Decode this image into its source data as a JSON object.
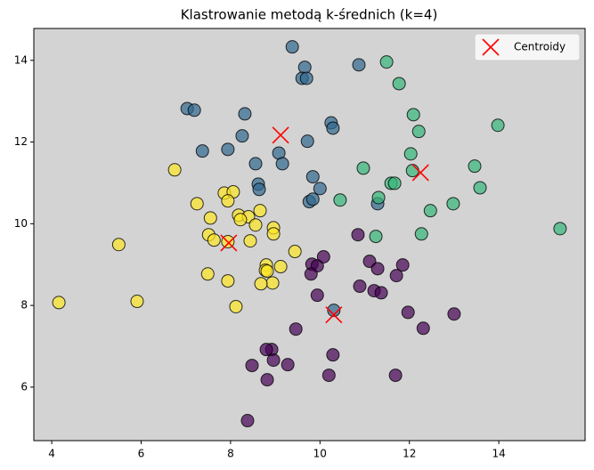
{
  "chart_data": {
    "type": "scatter",
    "title": "Klastrowanie metodą k-średnich (k=4)",
    "xlim": [
      3.6,
      15.93
    ],
    "ylim": [
      4.69,
      14.78
    ],
    "xticks": [
      4,
      6,
      8,
      10,
      12,
      14
    ],
    "yticks": [
      6,
      8,
      10,
      12,
      14
    ],
    "grid": false,
    "background": "#d3d3d3",
    "legend": "upper right",
    "series": [
      {
        "color": "#31688e",
        "marker": "o",
        "x": [
          9.38,
          9.66,
          9.6,
          9.7,
          10.87,
          7.03,
          7.19,
          8.32,
          10.25,
          10.29,
          8.26,
          9.72,
          7.37,
          7.94,
          9.08,
          8.56,
          9.16,
          8.62,
          8.64,
          9.84,
          10.0,
          9.76,
          9.84,
          11.29,
          10.31
        ],
        "y": [
          14.33,
          13.83,
          13.56,
          13.56,
          13.89,
          12.82,
          12.78,
          12.69,
          12.47,
          12.34,
          12.15,
          12.02,
          11.78,
          11.82,
          11.73,
          11.47,
          11.47,
          10.97,
          10.84,
          11.15,
          10.86,
          10.54,
          10.6,
          10.49,
          7.88
        ]
      },
      {
        "color": "#35b779",
        "marker": "o",
        "x": [
          11.49,
          11.77,
          12.09,
          12.21,
          13.98,
          12.03,
          10.97,
          12.07,
          13.46,
          13.58,
          11.59,
          11.67,
          10.45,
          11.31,
          12.47,
          12.98,
          12.27,
          11.25,
          15.37
        ],
        "y": [
          13.96,
          13.43,
          12.67,
          12.26,
          12.41,
          11.71,
          11.36,
          11.3,
          11.41,
          10.88,
          10.99,
          10.99,
          10.58,
          10.64,
          10.32,
          10.49,
          9.75,
          9.69,
          9.88
        ]
      },
      {
        "color": "#fde725",
        "marker": "o",
        "x": [
          6.75,
          7.86,
          8.06,
          7.94,
          7.25,
          8.66,
          7.55,
          8.18,
          8.4,
          8.22,
          8.56,
          7.51,
          5.5,
          7.94,
          7.63,
          8.44,
          8.96,
          8.96,
          9.44,
          8.8,
          8.78,
          8.82,
          9.12,
          7.49,
          7.94,
          8.94,
          8.68,
          4.16,
          5.91,
          8.12
        ],
        "y": [
          11.32,
          10.75,
          10.78,
          10.56,
          10.49,
          10.32,
          10.14,
          10.21,
          10.17,
          10.1,
          9.97,
          9.73,
          9.49,
          9.56,
          9.6,
          9.58,
          9.9,
          9.75,
          9.32,
          8.99,
          8.86,
          8.84,
          8.95,
          8.77,
          8.6,
          8.55,
          8.53,
          8.07,
          8.1,
          7.97
        ]
      },
      {
        "color": "#440154",
        "marker": "o",
        "x": [
          10.85,
          9.82,
          9.94,
          10.08,
          9.8,
          11.11,
          11.29,
          11.85,
          11.71,
          10.89,
          11.21,
          11.37,
          9.94,
          11.97,
          13.0,
          12.31,
          9.46,
          10.29,
          8.92,
          8.8,
          8.96,
          8.48,
          9.28,
          8.82,
          10.2,
          11.69,
          8.38
        ],
        "y": [
          9.73,
          9.01,
          8.97,
          9.19,
          8.77,
          9.08,
          8.9,
          8.99,
          8.73,
          8.47,
          8.36,
          8.31,
          8.25,
          7.83,
          7.79,
          7.44,
          7.42,
          6.79,
          6.92,
          6.92,
          6.66,
          6.53,
          6.55,
          6.18,
          6.29,
          6.29,
          5.18
        ]
      },
      {
        "name": "Centroidy",
        "color": "#ff0000",
        "marker": "x",
        "x": [
          9.12,
          7.96,
          10.31,
          12.25
        ],
        "y": [
          12.17,
          9.53,
          7.77,
          11.25
        ]
      }
    ]
  }
}
